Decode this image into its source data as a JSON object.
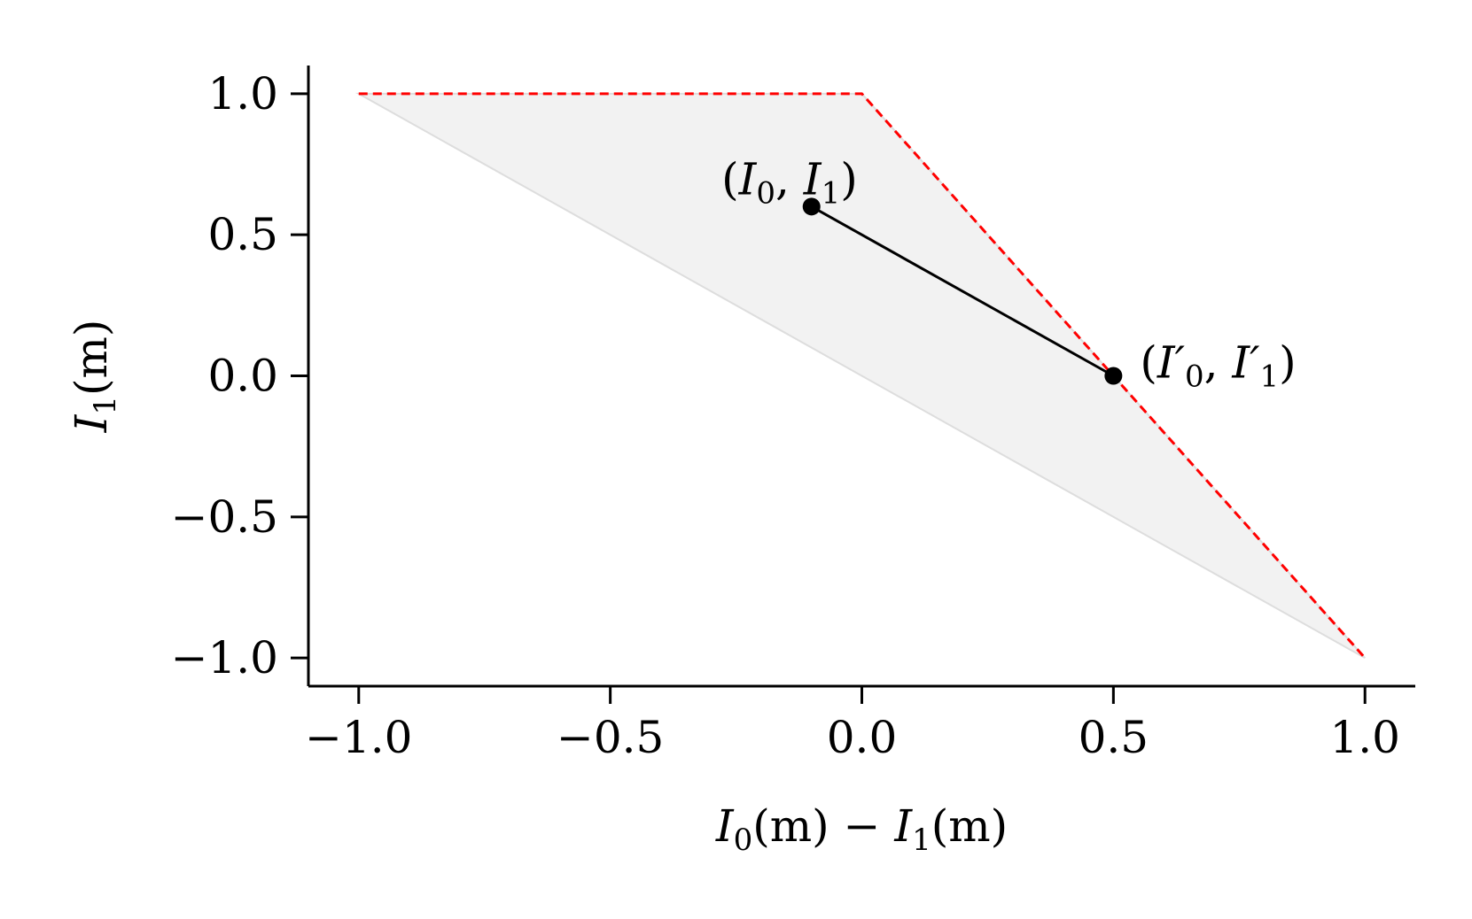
{
  "chart_data": {
    "type": "line",
    "title": "",
    "xlabel": {
      "main1": "I",
      "sub1": "0",
      "arg1": "(m)",
      "minus": " − ",
      "main2": "I",
      "sub2": "1",
      "arg2": "(m)"
    },
    "ylabel": {
      "main": "I",
      "sub": "1",
      "arg": "(m)"
    },
    "xlim": [
      -1.1,
      1.1
    ],
    "ylim": [
      -1.1,
      1.1
    ],
    "xticks": [
      -1.0,
      -0.5,
      0.0,
      0.5,
      1.0
    ],
    "yticks": [
      -1.0,
      -0.5,
      0.0,
      0.5,
      1.0
    ],
    "xtick_labels": [
      "−1.0",
      "−0.5",
      "0.0",
      "0.5",
      "1.0"
    ],
    "ytick_labels": [
      "1.0",
      "0.5",
      "0.0",
      "−0.5",
      "−1.0"
    ],
    "ytick_values_for_labels": [
      1.0,
      0.5,
      0.0,
      -0.5,
      -1.0
    ],
    "grid": false,
    "feasible_region": {
      "vertices": [
        [
          -1.0,
          1.0
        ],
        [
          0.0,
          1.0
        ],
        [
          1.0,
          -1.0
        ]
      ],
      "color": "#f2f2f2"
    },
    "boundary_dashed": {
      "x": [
        -1.0,
        0.0,
        1.0
      ],
      "y": [
        1.0,
        1.0,
        -1.0
      ],
      "color": "#ff0000"
    },
    "segment": {
      "x": [
        -0.1,
        0.5
      ],
      "y": [
        0.6,
        0.0
      ],
      "color": "#000000"
    },
    "points": [
      {
        "x": -0.1,
        "y": 0.6,
        "label": {
          "open": "(",
          "m1": "I",
          "s1": "0",
          "comma": ", ",
          "m2": "I",
          "s2": "1",
          "close": ")"
        }
      },
      {
        "x": 0.5,
        "y": 0.0,
        "label": {
          "open": "(",
          "m1": "I′",
          "s1": "0",
          "comma": ", ",
          "m2": "I′",
          "s2": "1",
          "close": ")"
        }
      }
    ]
  }
}
